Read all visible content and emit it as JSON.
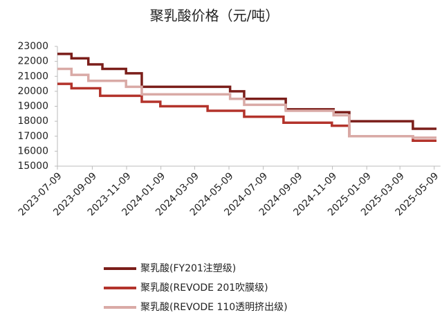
{
  "chart_data": {
    "type": "line",
    "step": true,
    "title": "聚乳酸价格（元/吨）",
    "xlim": [
      "2023-07-09",
      "2025-05-20"
    ],
    "xticks": [
      "2023-07-09",
      "2023-09-09",
      "2023-11-09",
      "2024-01-09",
      "2024-03-09",
      "2024-05-09",
      "2024-07-09",
      "2024-09-09",
      "2024-11-09",
      "2025-01-09",
      "2025-03-09",
      "2025-05-09"
    ],
    "ylim": [
      15000,
      23000
    ],
    "yticks": [
      15000,
      16000,
      17000,
      18000,
      19000,
      20000,
      21000,
      22000,
      23000
    ],
    "series": [
      {
        "name": "聚乳酸(FY201注塑级)",
        "color": "#7b1e1a",
        "x": [
          "2023-07-09",
          "2023-08-03",
          "2023-09-02",
          "2023-09-27",
          "2023-11-08",
          "2023-12-06",
          "2024-05-11",
          "2024-06-05",
          "2024-08-18",
          "2024-11-11",
          "2024-12-09",
          "2025-04-01",
          "2025-05-13"
        ],
        "values": [
          22500,
          22200,
          21800,
          21500,
          21200,
          20300,
          20000,
          19500,
          18800,
          18600,
          18000,
          17500,
          17500
        ]
      },
      {
        "name": "聚乳酸(REVODE 201吹膜级)",
        "color": "#b3332b",
        "x": [
          "2023-07-09",
          "2023-08-03",
          "2023-09-23",
          "2023-12-06",
          "2024-01-08",
          "2024-04-01",
          "2024-06-05",
          "2024-08-14",
          "2024-11-08",
          "2024-12-09",
          "2025-04-01",
          "2025-05-13"
        ],
        "values": [
          20500,
          20200,
          19700,
          19300,
          19000,
          18700,
          18300,
          17900,
          17700,
          17000,
          16700,
          16700
        ]
      },
      {
        "name": "聚乳酸(REVODE 110透明挤出级)",
        "color": "#d9aaa6",
        "x": [
          "2023-07-09",
          "2023-08-03",
          "2023-09-02",
          "2023-11-08",
          "2023-12-06",
          "2024-05-11",
          "2024-06-05",
          "2024-08-18",
          "2024-11-11",
          "2024-12-09",
          "2025-04-01",
          "2025-05-13"
        ],
        "values": [
          21500,
          21100,
          20700,
          20300,
          19800,
          19500,
          19100,
          18700,
          18400,
          17000,
          16900,
          16900
        ]
      }
    ]
  }
}
